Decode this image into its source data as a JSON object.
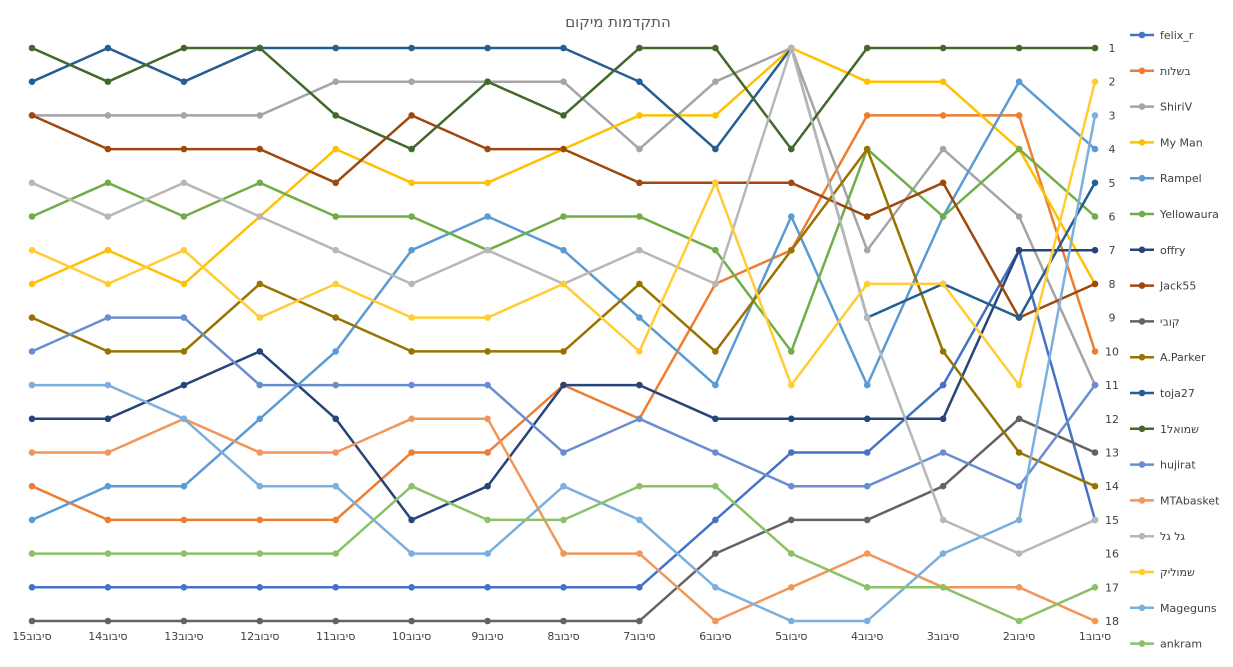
{
  "chart_data": {
    "type": "line",
    "title": "התקדמות מיקום",
    "xlabel": "",
    "ylabel": "",
    "ylim": [
      1,
      18
    ],
    "y_axis_position": "right",
    "y_reversed": true,
    "grid": false,
    "legend_position": "right",
    "categories": [
      "סיבוב15",
      "סיבוב14",
      "סיבוב13",
      "סיבוב12",
      "סיבוב11",
      "סיבוב10",
      "סיבוב9",
      "סיבוב8",
      "סיבוב7",
      "סיבוב6",
      "סיבוב5",
      "סיבוב4",
      "סיבוב3",
      "סיבוב2",
      "סיבוב1"
    ],
    "y_ticks": [
      1,
      2,
      3,
      4,
      5,
      6,
      7,
      8,
      9,
      10,
      11,
      12,
      13,
      14,
      15,
      16,
      17,
      18
    ],
    "series": [
      {
        "name": "felix_r",
        "color": "#4472C4",
        "values": [
          17,
          17,
          17,
          17,
          17,
          17,
          17,
          17,
          17,
          15,
          13,
          13,
          11,
          7,
          15
        ]
      },
      {
        "name": "בשלות",
        "color": "#ED7D31",
        "values": [
          14,
          15,
          15,
          15,
          15,
          13,
          13,
          11,
          12,
          8,
          7,
          3,
          3,
          3,
          10
        ]
      },
      {
        "name": "ShiriV",
        "color": "#A5A5A5",
        "values": [
          3,
          3,
          3,
          3,
          2,
          2,
          2,
          2,
          4,
          2,
          1,
          7,
          4,
          6,
          11
        ]
      },
      {
        "name": "My Man",
        "color": "#FFC000",
        "values": [
          8,
          7,
          8,
          6,
          4,
          5,
          5,
          4,
          3,
          3,
          1,
          2,
          2,
          4,
          8
        ]
      },
      {
        "name": "Rampel",
        "color": "#5B9BD5",
        "values": [
          15,
          14,
          14,
          12,
          10,
          7,
          6,
          7,
          9,
          11,
          6,
          11,
          6,
          2,
          4
        ]
      },
      {
        "name": "Yellowaura",
        "color": "#70AD47",
        "values": [
          6,
          5,
          6,
          5,
          6,
          6,
          7,
          6,
          6,
          7,
          10,
          4,
          6,
          4,
          6
        ]
      },
      {
        "name": "offry",
        "color": "#264478",
        "values": [
          12,
          12,
          11,
          10,
          12,
          15,
          14,
          11,
          11,
          12,
          12,
          12,
          12,
          7,
          7
        ]
      },
      {
        "name": "Jack55",
        "color": "#9E480E",
        "values": [
          3,
          4,
          4,
          4,
          5,
          3,
          4,
          4,
          5,
          5,
          5,
          6,
          5,
          9,
          8
        ]
      },
      {
        "name": "קובי",
        "color": "#636363",
        "values": [
          18,
          18,
          18,
          18,
          18,
          18,
          18,
          18,
          18,
          16,
          15,
          15,
          14,
          12,
          13
        ]
      },
      {
        "name": "A.Parker",
        "color": "#997300",
        "values": [
          9,
          10,
          10,
          8,
          9,
          10,
          10,
          10,
          8,
          10,
          7,
          4,
          10,
          13,
          14
        ]
      },
      {
        "name": "toja27",
        "color": "#255E91",
        "values": [
          2,
          1,
          2,
          1,
          1,
          1,
          1,
          1,
          2,
          4,
          1,
          9,
          8,
          9,
          5
        ]
      },
      {
        "name": "שמואל1",
        "color": "#43682B",
        "values": [
          1,
          2,
          1,
          1,
          3,
          4,
          2,
          3,
          1,
          1,
          4,
          1,
          1,
          1,
          1
        ]
      },
      {
        "name": "hujirat",
        "color": "#698ED0",
        "values": [
          10,
          9,
          9,
          11,
          11,
          11,
          11,
          13,
          12,
          13,
          14,
          14,
          13,
          14,
          11
        ]
      },
      {
        "name": "MTAbasket",
        "color": "#F1975A",
        "values": [
          13,
          13,
          12,
          13,
          13,
          12,
          12,
          16,
          16,
          18,
          17,
          16,
          17,
          17,
          18
        ]
      },
      {
        "name": "גל גל",
        "color": "#B7B7B7",
        "values": [
          5,
          6,
          5,
          6,
          7,
          8,
          7,
          8,
          7,
          8,
          1,
          9,
          15,
          16,
          15
        ]
      },
      {
        "name": "שמוליק",
        "color": "#FFCD33",
        "values": [
          7,
          8,
          7,
          9,
          8,
          9,
          9,
          8,
          10,
          5,
          11,
          8,
          8,
          11,
          2
        ]
      },
      {
        "name": "Mageguns",
        "color": "#7CAFDD",
        "values": [
          11,
          11,
          12,
          14,
          14,
          16,
          16,
          14,
          15,
          17,
          18,
          18,
          16,
          15,
          3
        ]
      },
      {
        "name": "ankram",
        "color": "#8CC168",
        "values": [
          16,
          16,
          16,
          16,
          16,
          14,
          15,
          15,
          14,
          14,
          16,
          17,
          17,
          18,
          17
        ]
      }
    ]
  }
}
